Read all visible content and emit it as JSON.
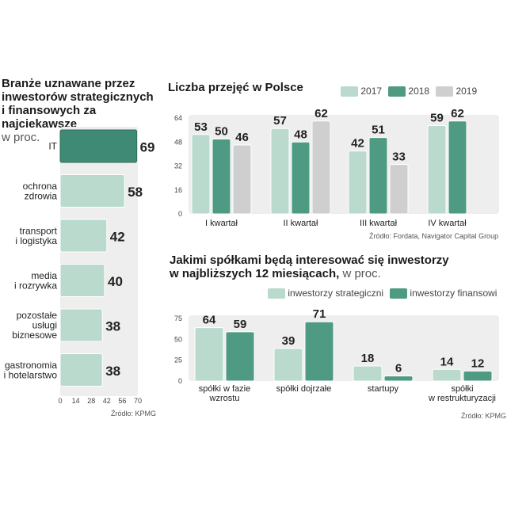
{
  "colors": {
    "light": "#b9dacd",
    "dark": "#4e9a83",
    "gray": "#cfcfcf",
    "panel": "#eeeeee",
    "it_fill": "#3f8a74"
  },
  "left": {
    "title": [
      "Branże uznawane przez",
      "inwestorów strategicznych",
      "i finansowych za najciekawsze"
    ],
    "subtitle": "w proc.",
    "source": "Źródło: KPMG"
  },
  "top": {
    "title": "Liczba przejęć w Polsce",
    "source": "Źródło: Fordata, Navigator Capital Group"
  },
  "bottom": {
    "title_line1": "Jakimi spółkami będą interesować się inwestorzy",
    "title_line2": "w najbliższych 12 miesiącach,",
    "title_suffix": " w proc.",
    "source": "Źródło: KPMG"
  },
  "chart_data": [
    {
      "type": "bar",
      "orientation": "horizontal",
      "categories": [
        "IT",
        "ochrona\nzdrowia",
        "transport\ni logistyka",
        "media\ni rozrywka",
        "pozostałe\nusługi\nbiznesowe",
        "gastronomia\ni hotelarstwo"
      ],
      "values": [
        69,
        58,
        42,
        40,
        38,
        38
      ],
      "xlim": [
        0,
        70
      ],
      "xticks": [
        0,
        14,
        28,
        42,
        56,
        70
      ]
    },
    {
      "type": "bar",
      "categories": [
        "I kwartał",
        "II kwartał",
        "III kwartał",
        "IV kwartał"
      ],
      "series": [
        {
          "name": "2017",
          "values": [
            53,
            57,
            42,
            59
          ]
        },
        {
          "name": "2018",
          "values": [
            50,
            48,
            51,
            62
          ]
        },
        {
          "name": "2019",
          "values": [
            46,
            62,
            33,
            null
          ]
        }
      ],
      "ylim": [
        0,
        64
      ],
      "yticks": [
        0,
        16,
        32,
        48,
        64
      ],
      "legend": "top-right"
    },
    {
      "type": "bar",
      "categories": [
        "spółki w fazie\nwzrostu",
        "spółki dojrzałe",
        "startupy",
        "spółki\nw restrukturyzacji"
      ],
      "series": [
        {
          "name": "inwestorzy strategiczni",
          "values": [
            64,
            39,
            18,
            14
          ]
        },
        {
          "name": "inwestorzy finansowi",
          "values": [
            59,
            71,
            6,
            12
          ]
        }
      ],
      "ylim": [
        0,
        75
      ],
      "yticks": [
        0,
        25,
        50,
        75
      ],
      "legend": "top-right"
    }
  ]
}
